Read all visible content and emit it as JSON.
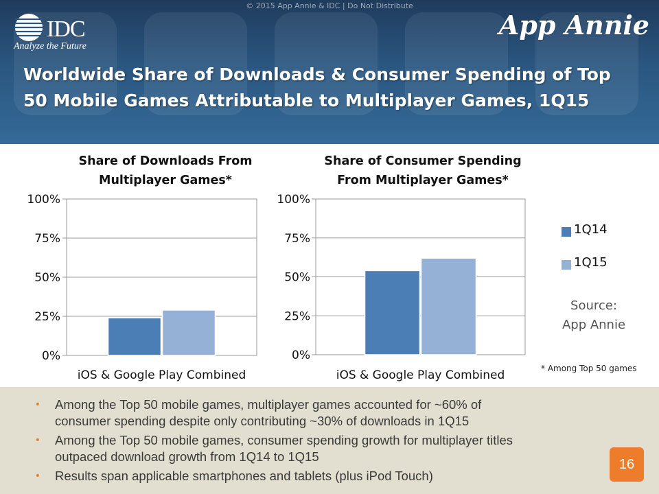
{
  "header": {
    "copyright": "© 2015 App Annie & IDC | Do Not Distribute",
    "idc_logo_text": "IDC",
    "idc_tagline": "Analyze the Future",
    "appannie_logo_text": "App Annie",
    "title": "Worldwide Share of Downloads & Consumer Spending of Top 50 Mobile Games Attributable to Multiplayer Games, 1Q15"
  },
  "colors": {
    "q14": "#4a7eb5",
    "q15": "#95b1d6",
    "accent_orange": "#ee7d2b",
    "panel_bg": "#e2dfd0"
  },
  "legend": [
    {
      "label": "1Q14",
      "color": "#4a7eb5"
    },
    {
      "label": "1Q15",
      "color": "#95b1d6"
    }
  ],
  "source_text": [
    "Source:",
    "App Annie"
  ],
  "footnote": "* Among Top 50 games",
  "chart_data": [
    {
      "type": "bar",
      "title": [
        "Share of Downloads From",
        "Multiplayer Games*"
      ],
      "categories": [
        "iOS & Google Play Combined"
      ],
      "series": [
        {
          "name": "1Q14",
          "values": [
            24
          ]
        },
        {
          "name": "1Q15",
          "values": [
            29
          ]
        }
      ],
      "ylim": [
        0,
        100
      ],
      "yticks": [
        "0%",
        "25%",
        "50%",
        "75%",
        "100%"
      ],
      "tick_values": [
        0,
        25,
        50,
        75,
        100
      ],
      "xlabel": "",
      "ylabel": "",
      "grid": true
    },
    {
      "type": "bar",
      "title": [
        "Share of Consumer Spending",
        "From Multiplayer Games*"
      ],
      "categories": [
        "iOS & Google Play Combined"
      ],
      "series": [
        {
          "name": "1Q14",
          "values": [
            54
          ]
        },
        {
          "name": "1Q15",
          "values": [
            62
          ]
        }
      ],
      "ylim": [
        0,
        100
      ],
      "yticks": [
        "0%",
        "25%",
        "50%",
        "75%",
        "100%"
      ],
      "tick_values": [
        0,
        25,
        50,
        75,
        100
      ],
      "xlabel": "",
      "ylabel": "",
      "grid": true
    }
  ],
  "bullets": [
    [
      "Among the Top 50 mobile games, multiplayer games accounted for ~60% of",
      "consumer spending despite only contributing ~30% of downloads in 1Q15"
    ],
    [
      "Among the Top 50 mobile games, consumer spending growth for multiplayer titles",
      "outpaced download growth from 1Q14 to 1Q15"
    ],
    [
      "Results span applicable smartphones and tablets (plus iPod Touch)"
    ]
  ],
  "bullet_marker": "•",
  "page_number": "16"
}
